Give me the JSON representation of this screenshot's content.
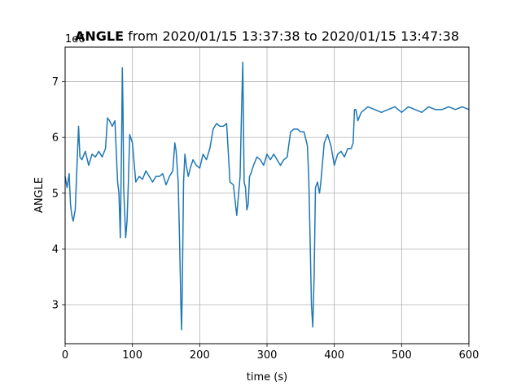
{
  "chart_data": {
    "type": "line",
    "title_bold": "ANGLE",
    "title_rest": " from 2020/01/15 13:37:38 to 2020/01/15 13:47:38",
    "offset_text": "1e6",
    "xlabel": "time (s)",
    "ylabel": "ANGLE",
    "xlim": [
      0,
      600
    ],
    "ylim": [
      2300000,
      7620000
    ],
    "grid": true,
    "line_color": "#1f77b4",
    "x_ticks": [
      {
        "value": 0,
        "label": "0"
      },
      {
        "value": 100,
        "label": "100"
      },
      {
        "value": 200,
        "label": "200"
      },
      {
        "value": 300,
        "label": "300"
      },
      {
        "value": 400,
        "label": "400"
      },
      {
        "value": 500,
        "label": "500"
      },
      {
        "value": 600,
        "label": "600"
      }
    ],
    "y_ticks": [
      {
        "value": 3000000,
        "label": "3"
      },
      {
        "value": 4000000,
        "label": "4"
      },
      {
        "value": 5000000,
        "label": "5"
      },
      {
        "value": 6000000,
        "label": "6"
      },
      {
        "value": 7000000,
        "label": "7"
      }
    ],
    "series": [
      {
        "x": [
          0,
          3,
          6,
          8,
          10,
          12,
          15,
          18,
          20,
          22,
          25,
          30,
          35,
          40,
          45,
          50,
          55,
          60,
          63,
          66,
          70,
          74,
          78,
          80,
          82,
          84,
          85,
          86,
          87,
          88,
          90,
          92,
          94,
          96,
          100,
          105,
          110,
          115,
          120,
          125,
          130,
          135,
          140,
          145,
          150,
          155,
          160,
          163,
          165,
          168,
          170,
          172,
          173,
          174,
          175,
          176,
          178,
          180,
          183,
          186,
          190,
          195,
          200,
          205,
          210,
          215,
          220,
          225,
          230,
          235,
          240,
          245,
          250,
          255,
          260,
          262,
          264,
          266,
          268,
          270,
          272,
          274,
          276,
          280,
          285,
          290,
          295,
          300,
          305,
          310,
          315,
          320,
          325,
          330,
          335,
          340,
          345,
          350,
          355,
          360,
          362,
          364,
          366,
          368,
          370,
          372,
          375,
          378,
          380,
          385,
          390,
          395,
          400,
          405,
          410,
          415,
          420,
          425,
          428,
          430,
          432,
          435,
          440,
          445,
          450,
          460,
          470,
          480,
          490,
          500,
          510,
          520,
          530,
          540,
          550,
          560,
          570,
          580,
          590,
          600
        ],
        "y": [
          5300000,
          5100000,
          5350000,
          4800000,
          4600000,
          4500000,
          4700000,
          5600000,
          6200000,
          5650000,
          5600000,
          5750000,
          5500000,
          5700000,
          5650000,
          5750000,
          5650000,
          5800000,
          6350000,
          6300000,
          6200000,
          6300000,
          5200000,
          5000000,
          4200000,
          6000000,
          7250000,
          6500000,
          5100000,
          4800000,
          4200000,
          4500000,
          5200000,
          6050000,
          5900000,
          5200000,
          5300000,
          5250000,
          5400000,
          5300000,
          5200000,
          5300000,
          5300000,
          5350000,
          5150000,
          5300000,
          5400000,
          5900000,
          5750000,
          5200000,
          4200000,
          3000000,
          2550000,
          3200000,
          4200000,
          5200000,
          5700000,
          5500000,
          5300000,
          5450000,
          5600000,
          5500000,
          5450000,
          5700000,
          5600000,
          5800000,
          6150000,
          6250000,
          6200000,
          6200000,
          6250000,
          5200000,
          5150000,
          4600000,
          5300000,
          6400000,
          7350000,
          5200000,
          5100000,
          4700000,
          4800000,
          5300000,
          5350000,
          5500000,
          5650000,
          5600000,
          5500000,
          5700000,
          5600000,
          5700000,
          5600000,
          5500000,
          5600000,
          5650000,
          6100000,
          6150000,
          6150000,
          6100000,
          6100000,
          5850000,
          5300000,
          4200000,
          3000000,
          2600000,
          3500000,
          5100000,
          5200000,
          5000000,
          5200000,
          5900000,
          6050000,
          5850000,
          5500000,
          5700000,
          5750000,
          5650000,
          5800000,
          5800000,
          5900000,
          6500000,
          6500000,
          6300000,
          6450000,
          6500000,
          6550000,
          6500000,
          6450000,
          6500000,
          6550000,
          6450000,
          6550000,
          6500000,
          6450000,
          6550000,
          6500000,
          6500000,
          6550000,
          6500000,
          6550000,
          6500000
        ]
      }
    ]
  }
}
